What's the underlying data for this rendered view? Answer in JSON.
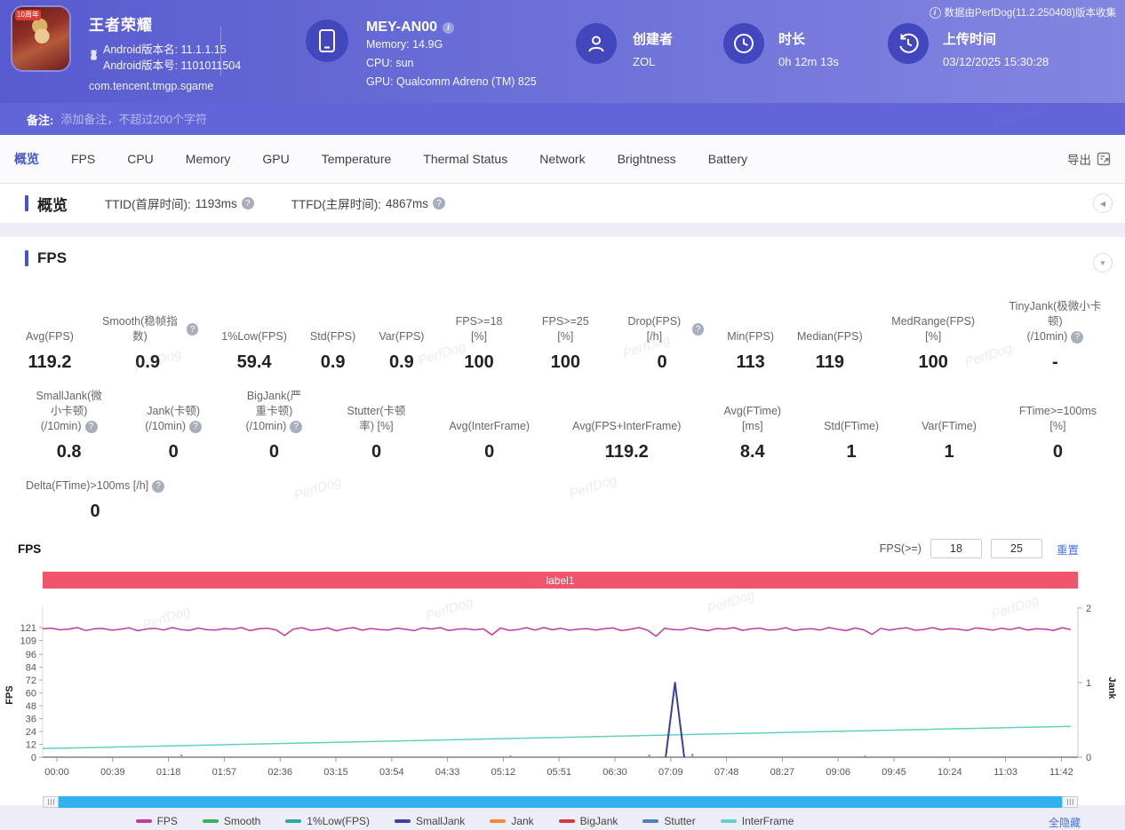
{
  "header": {
    "app": {
      "badge": "10周年",
      "title": "王者荣耀",
      "version_name_label": "Android版本名:",
      "version_name": "11.1.1.15",
      "version_code_label": "Android版本号:",
      "version_code": "1101011504",
      "package": "com.tencent.tmgp.sgame"
    },
    "device": {
      "model": "MEY-AN00",
      "memory_label": "Memory:",
      "memory": "14.9G",
      "cpu_label": "CPU:",
      "cpu": "sun",
      "gpu_label": "GPU:",
      "gpu": "Qualcomm Adreno (TM) 825"
    },
    "creator": {
      "label": "创建者",
      "value": "ZOL"
    },
    "duration": {
      "label": "时长",
      "value": "0h 12m 13s"
    },
    "upload": {
      "label": "上传时间",
      "value": "03/12/2025 15:30:28"
    },
    "collect_note": "数据由PerfDog(11.2.250408)版本收集"
  },
  "note_bar": {
    "label": "备注:",
    "placeholder": "添加备注，不超过200个字符"
  },
  "tabs": {
    "items": [
      "概览",
      "FPS",
      "CPU",
      "Memory",
      "GPU",
      "Temperature",
      "Thermal Status",
      "Network",
      "Brightness",
      "Battery"
    ],
    "active": "概览",
    "export_label": "导出"
  },
  "overview": {
    "title": "概览",
    "stats": [
      {
        "label": "TTID(首屏时间):",
        "value": "1193ms",
        "help": true
      },
      {
        "label": "TTFD(主屏时间):",
        "value": "4867ms",
        "help": true
      }
    ]
  },
  "fps_section": {
    "title": "FPS",
    "metrics_rows": [
      [
        {
          "label": "Avg(FPS)",
          "value": "119.2"
        },
        {
          "label": "Smooth(稳帧指数)",
          "help": true,
          "value": "0.9"
        },
        {
          "label": "1%Low(FPS)",
          "value": "59.4"
        },
        {
          "label": "Std(FPS)",
          "value": "0.9"
        },
        {
          "label": "Var(FPS)",
          "value": "0.9"
        },
        {
          "label": "FPS>=18 [%]",
          "value": "100"
        },
        {
          "label": "FPS>=25 [%]",
          "value": "100"
        },
        {
          "label": "Drop(FPS) [/h]",
          "help": true,
          "value": "0"
        },
        {
          "label": "Min(FPS)",
          "value": "113"
        },
        {
          "label": "Median(FPS)",
          "value": "119"
        },
        {
          "label": "MedRange(FPS)[%]",
          "value": "100"
        },
        {
          "label": "TinyJank(极微小卡顿)",
          "label2": "(/10min)",
          "help": true,
          "value": "-"
        }
      ],
      [
        {
          "label": "SmallJank(微小卡顿)",
          "label2": "(/10min)",
          "help": true,
          "value": "0.8"
        },
        {
          "label": "Jank(卡顿)",
          "label2": "(/10min)",
          "help": true,
          "value": "0"
        },
        {
          "label": "BigJank(严重卡顿)",
          "label2": "(/10min)",
          "help": true,
          "value": "0"
        },
        {
          "label": "Stutter(卡顿率) [%]",
          "value": "0"
        },
        {
          "label": "Avg(InterFrame)",
          "value": "0"
        },
        {
          "label": "Avg(FPS+InterFrame)",
          "value": "119.2"
        },
        {
          "label": "Avg(FTime) [ms]",
          "value": "8.4"
        },
        {
          "label": "Std(FTime)",
          "value": "1"
        },
        {
          "label": "Var(FTime)",
          "value": "1"
        },
        {
          "label": "FTime>=100ms [%]",
          "value": "0"
        }
      ],
      [
        {
          "label": "Delta(FTime)>100ms [/h]",
          "help": true,
          "value": "0"
        }
      ]
    ]
  },
  "chart_controls": {
    "fps_title": "FPS",
    "threshold_label": "FPS(>=)",
    "threshold1": "18",
    "threshold2": "25",
    "reset_label": "重置",
    "hide_all_label": "全隐藏"
  },
  "chart_data": {
    "type": "line",
    "banner_label": "label1",
    "x_ticks": [
      "00:00",
      "00:39",
      "01:18",
      "01:57",
      "02:36",
      "03:15",
      "03:54",
      "04:33",
      "05:12",
      "05:51",
      "06:30",
      "07:09",
      "07:48",
      "08:27",
      "09:06",
      "09:45",
      "10:24",
      "11:03",
      "11:42"
    ],
    "y_left": {
      "label": "FPS",
      "ticks": [
        0,
        12,
        24,
        36,
        48,
        60,
        72,
        84,
        96,
        109,
        121
      ],
      "max": 121
    },
    "y_right": {
      "label": "Jank",
      "ticks": [
        0,
        1,
        2
      ],
      "max": 2
    },
    "series": [
      {
        "name": "FPS",
        "color": "#c2399f",
        "axis": "left",
        "values": [
          119.8,
          120.5,
          118.9,
          119.6,
          121,
          118.3,
          119.9,
          120.2,
          118.6,
          119.4,
          120.8,
          118.1,
          119.7,
          120.3,
          118.8,
          121,
          119.2,
          118.4,
          120.6,
          119.0,
          118.7,
          120.1,
          119.5,
          121,
          118.2,
          119.8,
          120.4,
          118.9,
          113.6,
          119.6,
          120.9,
          118.5,
          119.3,
          120.7,
          118.0,
          119.9,
          121,
          118.6,
          120.2,
          119.1,
          118.8,
          120.5,
          119.4,
          118.2,
          120.8,
          119.7,
          121,
          118.3,
          119.5,
          120.0,
          118.9,
          119.8,
          114.3,
          120.6,
          118.4,
          119.2,
          120.9,
          118.7,
          121,
          119.0,
          120.3,
          118.5,
          119.6,
          120.1,
          118.8,
          119.9,
          120.7,
          118.2,
          119.4,
          121,
          118.6,
          113.0,
          120.4,
          119.1,
          118.9,
          120.8,
          119.3,
          118.1,
          120.2,
          119.7,
          121,
          118.4,
          119.8,
          120.5,
          118.7,
          119.2,
          120.9,
          118.3,
          119.6,
          120.0,
          118.8,
          121,
          119.4,
          118.2,
          120.6,
          119.0,
          114.6,
          120.3,
          118.6,
          119.9,
          120.8,
          118.5,
          119.3,
          121,
          118.9,
          120.1,
          119.5,
          118.3,
          120.7,
          119.8,
          118.6,
          120.4,
          119.2,
          121,
          118.7,
          120.0,
          119.6,
          118.4,
          120.9,
          119.1
        ]
      },
      {
        "name": "InterFrame",
        "color": "#5ed0c5",
        "axis": "left",
        "points": [
          [
            0,
            8
          ],
          [
            0.25,
            13.2
          ],
          [
            0.5,
            18.4
          ],
          [
            0.75,
            23.7
          ],
          [
            1,
            28.8
          ]
        ]
      },
      {
        "name": "SmallJank",
        "color": "#3c3f9e",
        "axis": "right",
        "points": [
          [
            0.606,
            0
          ],
          [
            0.615,
            1
          ],
          [
            0.624,
            0
          ]
        ]
      }
    ],
    "baseline_bumps": [
      [
        0.135,
        3
      ],
      [
        0.455,
        2
      ],
      [
        0.59,
        3
      ],
      [
        0.632,
        4
      ],
      [
        0.8,
        2
      ]
    ],
    "legend": [
      {
        "name": "FPS",
        "color": "#c2399f"
      },
      {
        "name": "Smooth",
        "color": "#3fae5b"
      },
      {
        "name": "1%Low(FPS)",
        "color": "#2aa79e"
      },
      {
        "name": "SmallJank",
        "color": "#3c3f9e"
      },
      {
        "name": "Jank",
        "color": "#f08a3d"
      },
      {
        "name": "BigJank",
        "color": "#d93a40"
      },
      {
        "name": "Stutter",
        "color": "#4d7fbd"
      },
      {
        "name": "InterFrame",
        "color": "#5ed4c9"
      }
    ]
  },
  "watermark_text": "PerfDog"
}
